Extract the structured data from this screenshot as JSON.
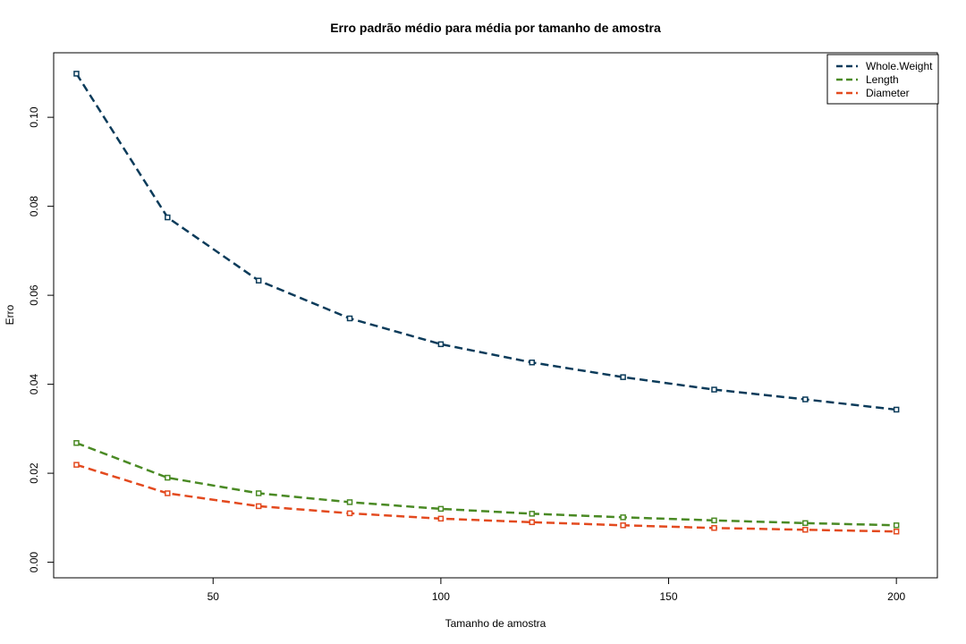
{
  "chart_data": {
    "type": "line",
    "title": "Erro padrão médio para média por tamanho de amostra",
    "xlabel": "Tamanho de amostra",
    "ylabel": "Erro",
    "xlim": [
      15,
      209
    ],
    "ylim": [
      -0.0035,
      0.1145
    ],
    "x_ticks": [
      50,
      100,
      150,
      200
    ],
    "x_tick_labels": [
      "50",
      "100",
      "150",
      "200"
    ],
    "y_ticks": [
      0.0,
      0.02,
      0.04,
      0.06,
      0.08,
      0.1
    ],
    "y_tick_labels": [
      "0.00",
      "0.02",
      "0.04",
      "0.06",
      "0.08",
      "0.10"
    ],
    "grid": false,
    "legend_position": "top-right",
    "x": [
      20,
      40,
      60,
      80,
      100,
      120,
      140,
      160,
      180,
      200
    ],
    "series": [
      {
        "name": "Whole.Weight",
        "color": "#0b3b5a",
        "values": [
          0.1098,
          0.0775,
          0.0633,
          0.0548,
          0.049,
          0.0449,
          0.0416,
          0.0388,
          0.0366,
          0.0343
        ]
      },
      {
        "name": "Length",
        "color": "#4a8a24",
        "values": [
          0.0268,
          0.019,
          0.0155,
          0.0135,
          0.012,
          0.0109,
          0.0101,
          0.0094,
          0.0088,
          0.0083
        ]
      },
      {
        "name": "Diameter",
        "color": "#e34a1f",
        "values": [
          0.0219,
          0.0155,
          0.0126,
          0.011,
          0.0098,
          0.009,
          0.0083,
          0.0077,
          0.0073,
          0.0069
        ]
      }
    ]
  }
}
